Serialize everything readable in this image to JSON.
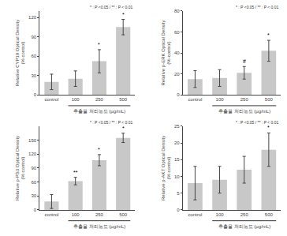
{
  "chart_data": [
    {
      "type": "bar",
      "ylabel": "Relative CYP19 Optical Density\n(% control)",
      "xlabel": "추출물 처리농도 (μg/mL)",
      "categories": [
        "control",
        "100",
        "250",
        "500"
      ],
      "values": [
        20,
        25,
        52,
        105
      ],
      "errors": [
        12,
        12,
        18,
        12
      ],
      "significance": [
        null,
        null,
        "*",
        "*"
      ],
      "annotation": "* : P <0.05 / ** : P < 0.01",
      "ylim": [
        0,
        130
      ],
      "yticks": [
        0,
        30,
        60,
        90,
        120
      ],
      "color": "#c8c8c8",
      "grid": false
    },
    {
      "type": "bar",
      "ylabel": "Relative p-ERK Optical Density\n(%-control)",
      "xlabel": "추출물 처리농도 (μg/mL)",
      "categories": [
        "control",
        "100",
        "250",
        "500"
      ],
      "values": [
        15,
        16,
        21,
        42
      ],
      "errors": [
        8,
        8,
        6,
        10
      ],
      "significance": [
        null,
        null,
        "#",
        "*"
      ],
      "annotation": "* : P <0.05 / ** : P < 0.01",
      "ylim": [
        0,
        80
      ],
      "yticks": [
        0,
        20,
        40,
        60,
        80
      ],
      "color": "#c8c8c8",
      "grid": false
    },
    {
      "type": "bar",
      "ylabel": "Relative p-PS3 Optical Density\n(% control)",
      "xlabel": "추출물 처리농도 (μg/mL)",
      "categories": [
        "control",
        "100",
        "250",
        "500"
      ],
      "values": [
        18,
        62,
        107,
        155
      ],
      "errors": [
        15,
        8,
        12,
        10
      ],
      "significance": [
        null,
        "**",
        "*",
        "*"
      ],
      "annotation": "* : P <0.05 / ** : P < 0.01",
      "ylim": [
        0,
        180
      ],
      "yticks": [
        0,
        30,
        60,
        90,
        120,
        150
      ],
      "color": "#c8c8c8",
      "grid": false
    },
    {
      "type": "bar",
      "ylabel": "Relative p-AKT Optical Density\n(% control)",
      "xlabel": "추출물 처리농도 (μg/mL)",
      "categories": [
        "control",
        "100",
        "250",
        "500"
      ],
      "values": [
        8,
        9,
        12,
        18
      ],
      "errors": [
        5,
        4,
        4,
        5
      ],
      "significance": [
        null,
        null,
        null,
        "*"
      ],
      "annotation": "* : P <0.05 / ** : P < 0.01",
      "ylim": [
        0,
        25
      ],
      "yticks": [
        0,
        5,
        10,
        15,
        20,
        25
      ],
      "color": "#c8c8c8",
      "grid": false
    }
  ]
}
